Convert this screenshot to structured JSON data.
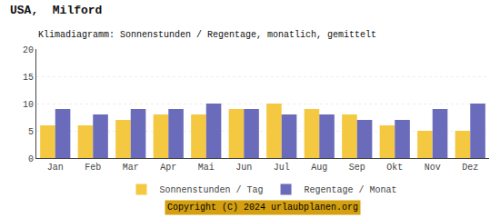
{
  "chart_data": {
    "type": "bar",
    "title": "USA,  Milford",
    "subtitle": "Klimadiagramm: Sonnenstunden / Regentage, monatlich, gemittelt",
    "categories": [
      "Jan",
      "Feb",
      "Mar",
      "Apr",
      "Mai",
      "Jun",
      "Jul",
      "Aug",
      "Sep",
      "Okt",
      "Nov",
      "Dez"
    ],
    "series": [
      {
        "name": "Sonnenstunden / Tag",
        "color": "#F5C842",
        "values": [
          6,
          6,
          7,
          8,
          8,
          9,
          10,
          9,
          8,
          6,
          5,
          5
        ]
      },
      {
        "name": "Regentage / Monat",
        "color": "#6B6BBB",
        "values": [
          9,
          8,
          9,
          9,
          10,
          9,
          8,
          8,
          7,
          7,
          9,
          10
        ]
      }
    ],
    "ylim": [
      0,
      20
    ],
    "yticks": [
      0,
      5,
      10,
      15,
      20
    ],
    "grid": true,
    "legend": "bottom",
    "annotations": [
      "Copyright (C) 2024 urlaubplanen.org"
    ]
  }
}
